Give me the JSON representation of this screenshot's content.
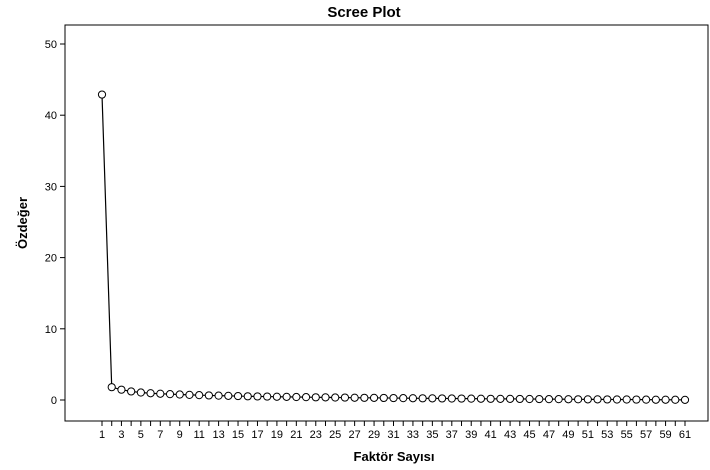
{
  "chart_data": {
    "type": "line",
    "title": "Scree Plot",
    "xlabel": "Faktör Sayısı",
    "ylabel": "Özdeğer",
    "xlim": [
      1,
      61
    ],
    "ylim": [
      0,
      50
    ],
    "y_ticks": [
      0,
      10,
      20,
      30,
      40,
      50
    ],
    "x_ticks": [
      1,
      3,
      5,
      7,
      9,
      11,
      13,
      15,
      17,
      19,
      21,
      23,
      25,
      27,
      29,
      31,
      33,
      35,
      37,
      39,
      41,
      43,
      45,
      47,
      49,
      51,
      53,
      55,
      57,
      59,
      61
    ],
    "grid": false,
    "line_color": "#000000",
    "marker": "open-circle",
    "x": [
      1,
      2,
      3,
      4,
      5,
      6,
      7,
      8,
      9,
      10,
      11,
      12,
      13,
      14,
      15,
      16,
      17,
      18,
      19,
      20,
      21,
      22,
      23,
      24,
      25,
      26,
      27,
      28,
      29,
      30,
      31,
      32,
      33,
      34,
      35,
      36,
      37,
      38,
      39,
      40,
      41,
      42,
      43,
      44,
      45,
      46,
      47,
      48,
      49,
      50,
      51,
      52,
      53,
      54,
      55,
      56,
      57,
      58,
      59,
      60,
      61
    ],
    "values": [
      42.9,
      1.8,
      1.45,
      1.2,
      1.05,
      0.95,
      0.88,
      0.82,
      0.77,
      0.72,
      0.68,
      0.64,
      0.61,
      0.58,
      0.55,
      0.52,
      0.5,
      0.48,
      0.46,
      0.44,
      0.42,
      0.4,
      0.38,
      0.37,
      0.35,
      0.34,
      0.32,
      0.31,
      0.3,
      0.29,
      0.27,
      0.26,
      0.25,
      0.24,
      0.23,
      0.22,
      0.21,
      0.2,
      0.19,
      0.18,
      0.17,
      0.16,
      0.16,
      0.15,
      0.14,
      0.13,
      0.12,
      0.12,
      0.11,
      0.1,
      0.09,
      0.09,
      0.08,
      0.07,
      0.07,
      0.06,
      0.05,
      0.04,
      0.04,
      0.03,
      0.02
    ]
  }
}
